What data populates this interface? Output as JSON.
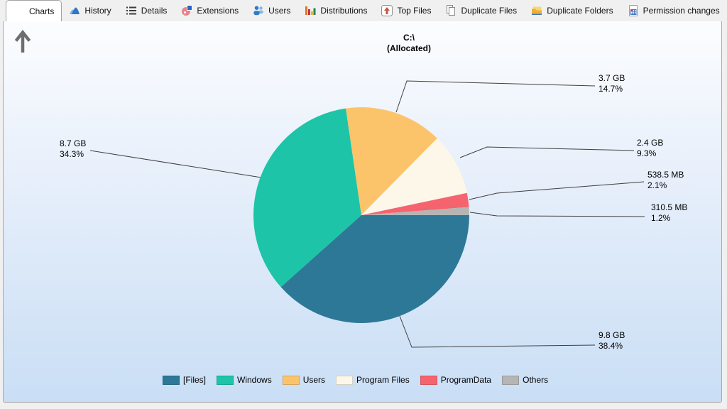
{
  "tabs": [
    {
      "label": "Charts",
      "active": true
    },
    {
      "label": "History",
      "active": false
    },
    {
      "label": "Details",
      "active": false
    },
    {
      "label": "Extensions",
      "active": false
    },
    {
      "label": "Users",
      "active": false
    },
    {
      "label": "Distributions",
      "active": false
    },
    {
      "label": "Top Files",
      "active": false
    },
    {
      "label": "Duplicate Files",
      "active": false
    },
    {
      "label": "Duplicate Folders",
      "active": false
    },
    {
      "label": "Permission changes",
      "active": false
    }
  ],
  "chart": {
    "title_line1": "C:\\",
    "title_line2": "(Allocated)"
  },
  "chart_data": {
    "type": "pie",
    "title": "C:\\ (Allocated)",
    "legend_position": "bottom",
    "start_angle_clockwise_from_east_deg": 0,
    "slices": [
      {
        "label": "[Files]",
        "size": "9.8 GB",
        "percent": 38.4,
        "percent_label": "38.4%",
        "color": "#2d7897"
      },
      {
        "label": "Windows",
        "size": "8.7 GB",
        "percent": 34.3,
        "percent_label": "34.3%",
        "color": "#1dc4a8"
      },
      {
        "label": "Users",
        "size": "3.7 GB",
        "percent": 14.7,
        "percent_label": "14.7%",
        "color": "#fcc46a"
      },
      {
        "label": "Program Files",
        "size": "2.4 GB",
        "percent": 9.3,
        "percent_label": "9.3%",
        "color": "#fdf7e9"
      },
      {
        "label": "ProgramData",
        "size": "538.5 MB",
        "percent": 2.1,
        "percent_label": "2.1%",
        "color": "#f5636f"
      },
      {
        "label": "Others",
        "size": "310.5 MB",
        "percent": 1.2,
        "percent_label": "1.2%",
        "color": "#b5b5b5"
      }
    ]
  }
}
